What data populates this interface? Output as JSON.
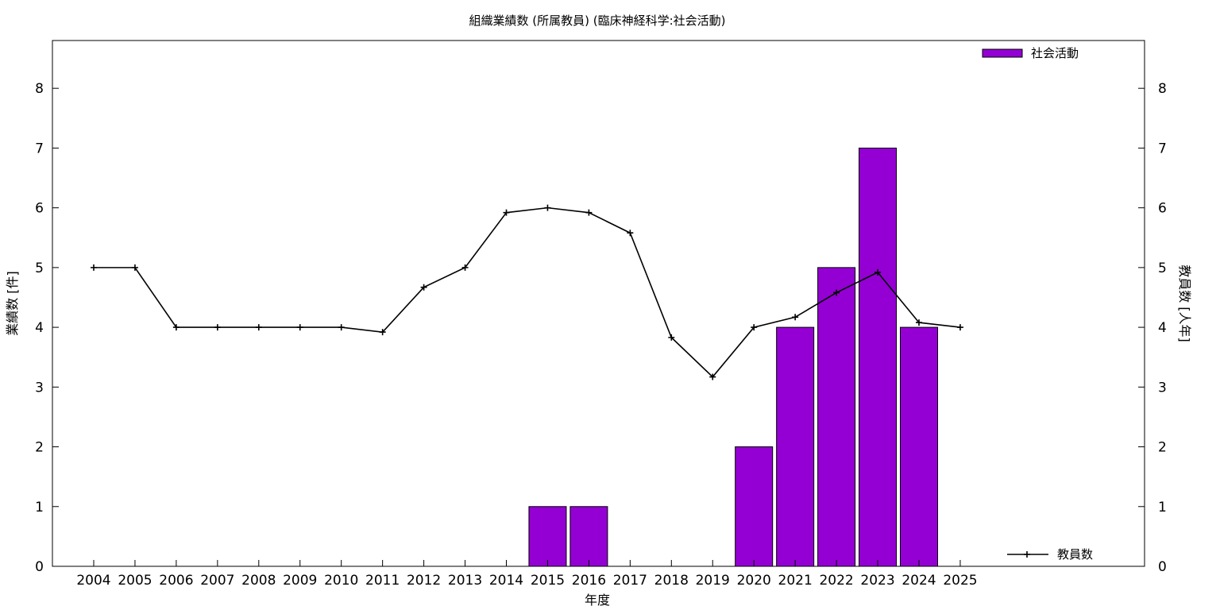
{
  "chart_data": {
    "type": "bar",
    "title": "組織業績数 (所属教員) (臨床神経科学:社会活動)",
    "xlabel": "年度",
    "ylabel": "業績数 [件]",
    "y2label": "教員数 [人年]",
    "ylim": [
      0,
      8.8
    ],
    "y2lim": [
      0,
      8.8
    ],
    "yticks": [
      0,
      1,
      2,
      3,
      4,
      5,
      6,
      7,
      8
    ],
    "y2ticks": [
      0,
      1,
      2,
      3,
      4,
      5,
      6,
      7,
      8
    ],
    "grid": false,
    "categories": [
      "2004",
      "2005",
      "2006",
      "2007",
      "2008",
      "2009",
      "2010",
      "2011",
      "2012",
      "2013",
      "2014",
      "2015",
      "2016",
      "2017",
      "2018",
      "2019",
      "2020",
      "2021",
      "2022",
      "2023",
      "2024",
      "2025"
    ],
    "series": [
      {
        "name": "社会活動",
        "type": "bar",
        "axis": "left",
        "color": "#9400d3",
        "values": [
          0,
          0,
          0,
          0,
          0,
          0,
          0,
          0,
          0,
          0,
          0,
          1,
          1,
          0,
          0,
          0,
          2,
          4,
          5,
          7,
          4,
          0
        ]
      },
      {
        "name": "教員数",
        "type": "line",
        "axis": "right",
        "color": "#000000",
        "marker": "plus",
        "values": [
          5.0,
          5.0,
          4.0,
          4.0,
          4.0,
          4.0,
          4.0,
          3.92,
          4.67,
          5.0,
          5.92,
          6.0,
          5.92,
          5.58,
          3.83,
          3.17,
          4.0,
          4.17,
          4.58,
          4.92,
          4.08,
          4.0
        ]
      }
    ],
    "legend": [
      {
        "label": "社会活動",
        "position": "top-right"
      },
      {
        "label": "教員数",
        "position": "bottom-right"
      }
    ]
  }
}
